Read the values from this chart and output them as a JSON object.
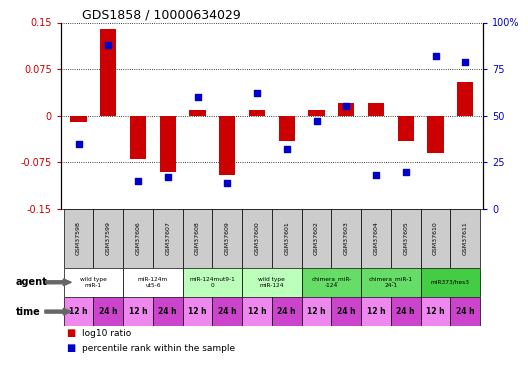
{
  "title": "GDS1858 / 10000634029",
  "samples": [
    "GSM37598",
    "GSM37599",
    "GSM37606",
    "GSM37607",
    "GSM37608",
    "GSM37609",
    "GSM37600",
    "GSM37601",
    "GSM37602",
    "GSM37603",
    "GSM37604",
    "GSM37605",
    "GSM37610",
    "GSM37611"
  ],
  "log10_ratio": [
    -0.01,
    0.14,
    -0.07,
    -0.09,
    0.01,
    -0.095,
    0.01,
    -0.04,
    0.01,
    0.02,
    0.02,
    -0.04,
    -0.06,
    0.055
  ],
  "percentile_rank": [
    35,
    88,
    15,
    17,
    60,
    14,
    62,
    32,
    47,
    55,
    18,
    20,
    82,
    79
  ],
  "ylim_left": [
    -0.15,
    0.15
  ],
  "ylim_right": [
    0,
    100
  ],
  "yticks_left": [
    -0.15,
    -0.075,
    0,
    0.075,
    0.15
  ],
  "yticks_right": [
    0,
    25,
    50,
    75,
    100
  ],
  "ytick_labels_right": [
    "0",
    "25",
    "50",
    "75",
    "100%"
  ],
  "bar_color": "#cc0000",
  "scatter_color": "#0000cc",
  "agent_groups": [
    {
      "label": "wild type\nmiR-1",
      "cols": [
        0,
        1
      ],
      "color": "#ffffff"
    },
    {
      "label": "miR-124m\nut5-6",
      "cols": [
        2,
        3
      ],
      "color": "#ffffff"
    },
    {
      "label": "miR-124mut9-1\n0",
      "cols": [
        4,
        5
      ],
      "color": "#bbffbb"
    },
    {
      "label": "wild type\nmiR-124",
      "cols": [
        6,
        7
      ],
      "color": "#bbffbb"
    },
    {
      "label": "chimera_miR-\n-124",
      "cols": [
        8,
        9
      ],
      "color": "#66dd66"
    },
    {
      "label": "chimera_miR-1\n24-1",
      "cols": [
        10,
        11
      ],
      "color": "#66dd66"
    },
    {
      "label": "miR373/hes3",
      "cols": [
        12,
        13
      ],
      "color": "#44cc44"
    }
  ],
  "time_colors_alt": [
    "#ee88ee",
    "#cc44cc"
  ],
  "xlabel_color": "#cc0000",
  "title_color": "#000000",
  "sample_bg_color": "#cccccc",
  "scatter_marker": "s",
  "scatter_size": 18,
  "bar_width": 0.55
}
